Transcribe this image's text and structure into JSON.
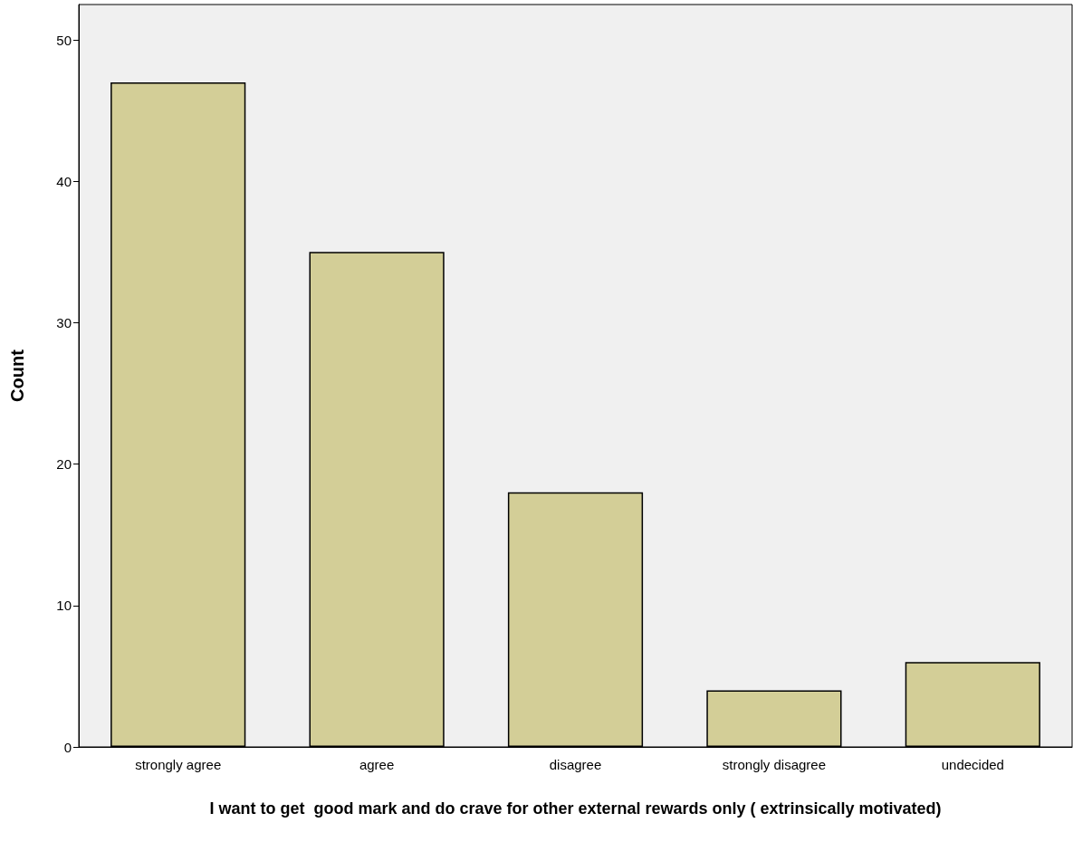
{
  "chart_data": {
    "type": "bar",
    "xlabel": "I want to get  good mark and do crave for other external rewards only ( extrinsically motivated)",
    "ylabel": "Count",
    "categories": [
      "strongly agree",
      "agree",
      "disagree",
      "strongly disagree",
      "undecided"
    ],
    "values": [
      47,
      35,
      18,
      4,
      6
    ],
    "color": "#d3ce97",
    "ylim": [
      0,
      52.5
    ],
    "yticks": [
      0,
      10,
      20,
      30,
      40,
      50
    ],
    "grid": false
  }
}
